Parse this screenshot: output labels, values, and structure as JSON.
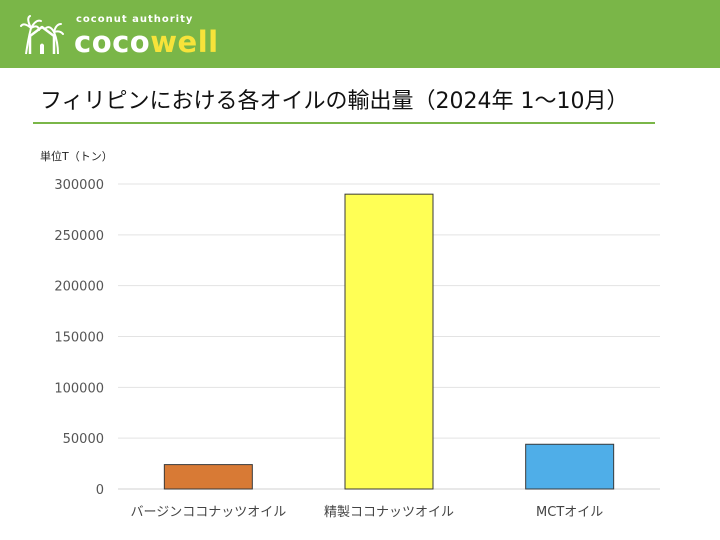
{
  "brand": {
    "tagline": "coconut authority",
    "wordmark_a": "coco",
    "wordmark_b": "well",
    "logo_icon": "palm-house-icon",
    "color": "#7ab648",
    "accent": "#f6e33a"
  },
  "chart_data": {
    "type": "bar",
    "title": "フィリピンにおける各オイルの輸出量（2024年 1〜10月）",
    "unit_label": "単位T（トン）",
    "categories": [
      "バージンココナッツオイル",
      "精製ココナッツオイル",
      "MCTオイル"
    ],
    "values": [
      24000,
      290000,
      44000
    ],
    "colors": [
      "#d87a35",
      "#ffff55",
      "#4faee8"
    ],
    "ylim": [
      0,
      300000
    ],
    "yticks": [
      0,
      50000,
      100000,
      150000,
      200000,
      250000,
      300000
    ],
    "grid": true,
    "legend": "none"
  }
}
